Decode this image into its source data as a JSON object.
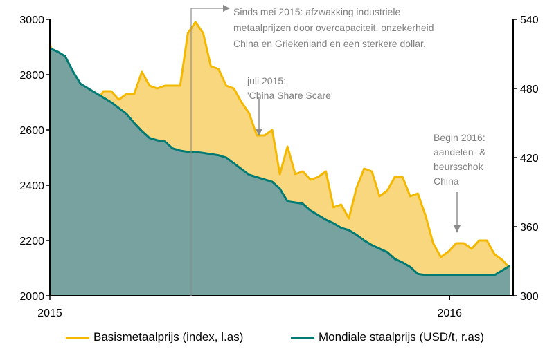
{
  "chart_data": {
    "type": "area",
    "x_ticks": [
      "2015",
      "2016"
    ],
    "y_left_ticks": [
      "2000",
      "2200",
      "2400",
      "2600",
      "2800",
      "3000"
    ],
    "y_right_ticks": [
      "300",
      "360",
      "420",
      "480",
      "540"
    ],
    "y_left_range": [
      2000,
      3000
    ],
    "y_right_range": [
      300,
      540
    ],
    "series": [
      {
        "name": "Basismetaalprijs (index, l.as)",
        "axis": "left",
        "color": "#f5b800",
        "fill": "#f9d77e",
        "x": [
          "2015-01-01",
          "2015-01-08",
          "2015-01-15",
          "2015-01-22",
          "2015-01-29",
          "2015-02-05",
          "2015-02-12",
          "2015-02-19",
          "2015-02-26",
          "2015-03-05",
          "2015-03-12",
          "2015-03-19",
          "2015-03-26",
          "2015-04-02",
          "2015-04-09",
          "2015-04-16",
          "2015-04-23",
          "2015-04-30",
          "2015-05-07",
          "2015-05-14",
          "2015-05-21",
          "2015-05-28",
          "2015-06-04",
          "2015-06-11",
          "2015-06-18",
          "2015-06-25",
          "2015-07-02",
          "2015-07-09",
          "2015-07-16",
          "2015-07-23",
          "2015-07-30",
          "2015-08-06",
          "2015-08-13",
          "2015-08-20",
          "2015-08-27",
          "2015-09-03",
          "2015-09-10",
          "2015-09-17",
          "2015-09-24",
          "2015-10-01",
          "2015-10-08",
          "2015-10-15",
          "2015-10-22",
          "2015-10-29",
          "2015-11-05",
          "2015-11-12",
          "2015-11-19",
          "2015-11-26",
          "2015-12-03",
          "2015-12-10",
          "2015-12-17",
          "2015-12-24",
          "2015-12-31",
          "2016-01-07",
          "2016-01-14",
          "2016-01-21",
          "2016-01-28",
          "2016-02-04",
          "2016-02-11",
          "2016-02-18",
          "2016-02-25"
        ],
        "values": [
          2910,
          2820,
          2700,
          2780,
          2700,
          2750,
          2700,
          2740,
          2740,
          2710,
          2730,
          2730,
          2810,
          2760,
          2750,
          2760,
          2760,
          2760,
          2950,
          2990,
          2950,
          2830,
          2820,
          2760,
          2750,
          2700,
          2660,
          2580,
          2580,
          2600,
          2440,
          2540,
          2440,
          2450,
          2420,
          2430,
          2450,
          2320,
          2330,
          2280,
          2390,
          2460,
          2450,
          2360,
          2380,
          2430,
          2430,
          2360,
          2370,
          2290,
          2190,
          2140,
          2160,
          2190,
          2190,
          2170,
          2200,
          2200,
          2150,
          2130,
          2100
        ]
      },
      {
        "name": "Mondiale staalprijs (USD/t, r.as)",
        "axis": "right",
        "color": "#007a73",
        "fill": "#78a29f",
        "x": [
          "2015-01-01",
          "2015-01-08",
          "2015-01-15",
          "2015-01-22",
          "2015-01-29",
          "2015-02-05",
          "2015-02-12",
          "2015-02-19",
          "2015-02-26",
          "2015-03-05",
          "2015-03-12",
          "2015-03-19",
          "2015-03-26",
          "2015-04-02",
          "2015-04-09",
          "2015-04-16",
          "2015-04-23",
          "2015-04-30",
          "2015-05-07",
          "2015-05-14",
          "2015-05-21",
          "2015-05-28",
          "2015-06-04",
          "2015-06-11",
          "2015-06-18",
          "2015-06-25",
          "2015-07-02",
          "2015-07-09",
          "2015-07-16",
          "2015-07-23",
          "2015-07-30",
          "2015-08-06",
          "2015-08-13",
          "2015-08-20",
          "2015-08-27",
          "2015-09-03",
          "2015-09-10",
          "2015-09-17",
          "2015-09-24",
          "2015-10-01",
          "2015-10-08",
          "2015-10-15",
          "2015-10-22",
          "2015-10-29",
          "2015-11-05",
          "2015-11-12",
          "2015-11-19",
          "2015-11-26",
          "2015-12-03",
          "2015-12-10",
          "2015-12-17",
          "2015-12-24",
          "2015-12-31",
          "2016-01-07",
          "2016-01-14",
          "2016-01-21",
          "2016-01-28",
          "2016-02-04",
          "2016-02-11",
          "2016-02-18",
          "2016-02-25"
        ],
        "values": [
          515,
          512,
          508,
          495,
          484,
          480,
          476,
          472,
          468,
          463,
          458,
          450,
          443,
          437,
          435,
          434,
          428,
          426,
          425,
          425,
          424,
          423,
          422,
          420,
          415,
          410,
          405,
          403,
          401,
          399,
          393,
          382,
          381,
          380,
          374,
          370,
          366,
          363,
          359,
          357,
          353,
          348,
          344,
          341,
          338,
          332,
          329,
          325,
          319,
          318,
          318,
          318,
          318,
          318,
          318,
          318,
          318,
          318,
          318,
          322,
          326
        ]
      }
    ],
    "annotations": [
      {
        "title": "Sinds mei 2015",
        "lines": [
          "Sinds mei 2015: afzwakking industriele",
          "metaalprijzen door overcapaciteit, onzekerheid",
          "China en Griekenland en een sterkere dollar."
        ]
      },
      {
        "title": "juli 2015",
        "lines": [
          "juli 2015:",
          "'China Share Scare'"
        ]
      },
      {
        "title": "Begin 2016",
        "lines": [
          "Begin 2016:",
          "aandelen- &",
          "beursschok",
          "China"
        ]
      }
    ],
    "legend_position": "bottom"
  },
  "legend": {
    "metal_label": "Basismetaalprijs (index, l.as)",
    "steel_label": "Mondiale staalprijs (USD/t, r.as)"
  }
}
